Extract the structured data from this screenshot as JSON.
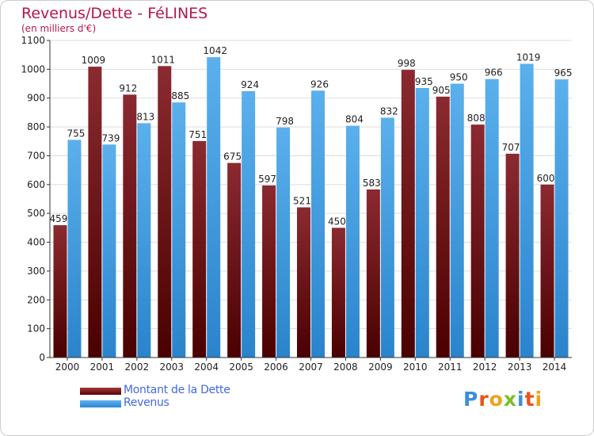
{
  "header": {
    "title": "Revenus/Dette - FéLINES",
    "subtitle": "(en milliers d'€)"
  },
  "chart_data": {
    "type": "bar",
    "categories": [
      "2000",
      "2001",
      "2002",
      "2003",
      "2004",
      "2005",
      "2006",
      "2007",
      "2008",
      "2009",
      "2010",
      "2011",
      "2012",
      "2013",
      "2014"
    ],
    "series": [
      {
        "name": "Montant de la Dette",
        "values": [
          459,
          1009,
          912,
          1011,
          751,
          675,
          597,
          521,
          450,
          583,
          998,
          905,
          808,
          707,
          600
        ],
        "color": "#7a1a1f"
      },
      {
        "name": "Revenus",
        "values": [
          755,
          739,
          813,
          885,
          1042,
          924,
          798,
          926,
          804,
          832,
          935,
          950,
          966,
          1019,
          965
        ],
        "color": "#4aa3e6"
      }
    ],
    "yticks": [
      "0",
      "100",
      "200",
      "300",
      "400",
      "500",
      "600",
      "700",
      "800",
      "900",
      "1000",
      "1100"
    ],
    "ylim": [
      0,
      1100
    ],
    "grid": true,
    "legend_position": "bottom-left"
  },
  "legend": {
    "items": [
      {
        "label": "Montant de la Dette"
      },
      {
        "label": "Revenus"
      }
    ]
  },
  "brand": {
    "text": "Proxiti",
    "letter_colors": [
      "#3a8fd8",
      "#e8541e",
      "#f0a21a",
      "#7cbf2a",
      "#3a8fd8",
      "#e8541e",
      "#f0a21a"
    ]
  }
}
